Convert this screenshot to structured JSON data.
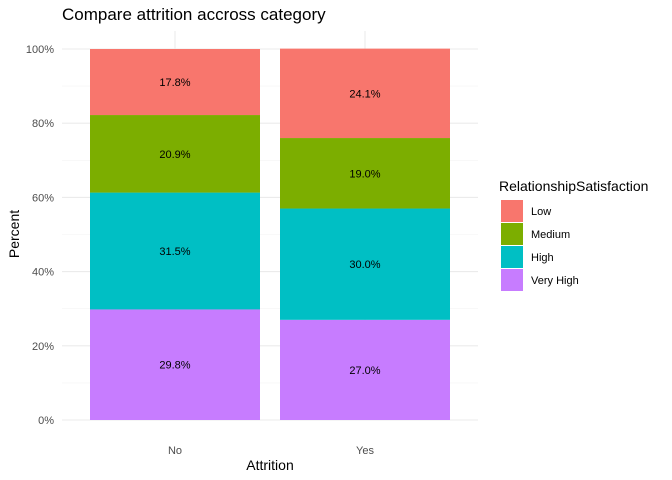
{
  "chart_data": {
    "type": "bar",
    "stacked": true,
    "title": "Compare attrition accross category",
    "xlabel": "Attrition",
    "ylabel": "Percent",
    "categories": [
      "No",
      "Yes"
    ],
    "ylim": [
      0,
      100
    ],
    "y_ticks": [
      "0%",
      "20%",
      "40%",
      "60%",
      "80%",
      "100%"
    ],
    "y_tick_values": [
      0,
      20,
      40,
      60,
      80,
      100
    ],
    "grid": true,
    "legend_title": "RelationshipSatisfaction",
    "legend_position": "right",
    "series": [
      {
        "name": "Very High",
        "color": "#C77CFF",
        "values": [
          29.8,
          27.0
        ],
        "labels": [
          "29.8%",
          "27.0%"
        ]
      },
      {
        "name": "High",
        "color": "#00BFC4",
        "values": [
          31.5,
          30.0
        ],
        "labels": [
          "31.5%",
          "30.0%"
        ]
      },
      {
        "name": "Medium",
        "color": "#7CAE00",
        "values": [
          20.9,
          19.0
        ],
        "labels": [
          "20.9%",
          "19.0%"
        ]
      },
      {
        "name": "Low",
        "color": "#F8766D",
        "values": [
          17.8,
          24.1
        ],
        "labels": [
          "17.8%",
          "24.1%"
        ]
      }
    ],
    "legend_order": [
      "Low",
      "Medium",
      "High",
      "Very High"
    ]
  }
}
